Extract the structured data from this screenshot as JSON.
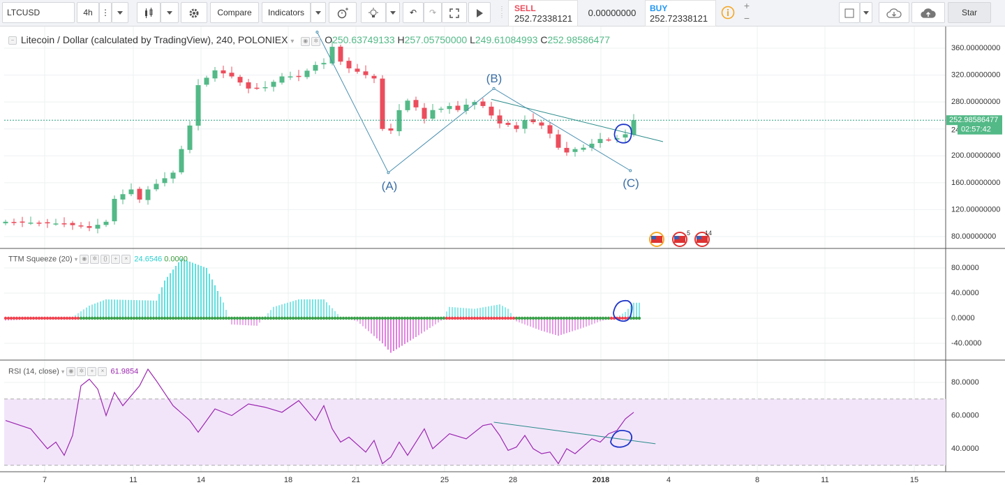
{
  "toolbar": {
    "symbol": "LTCUSD",
    "interval": "4h",
    "compare_label": "Compare",
    "indicators_label": "Indicators",
    "sell_label": "SELL",
    "sell_price": "252.72338121",
    "spread": "0.00000000",
    "buy_label": "BUY",
    "buy_price": "252.72338121",
    "star_label": "Star",
    "icons": [
      "candles-icon",
      "gear-icon",
      "alert-icon",
      "lightbulb-icon",
      "undo-icon",
      "redo-icon",
      "fullscreen-icon",
      "play-icon",
      "info-icon",
      "plus-icon",
      "minus-icon",
      "square-icon",
      "cloud-download-icon",
      "cloud-upload-icon"
    ]
  },
  "main_legend": {
    "title": "Litecoin / Dollar (calculated by TradingView), 240, POLONIEX",
    "o_label": "O",
    "o_value": "250.63749133",
    "h_label": "H",
    "h_value": "257.05750000",
    "l_label": "L",
    "l_value": "249.61084993",
    "c_label": "C",
    "c_value": "252.98586477"
  },
  "ttm_legend": {
    "name": "TTM Squeeze (20)",
    "value1": "24.6546",
    "value2": "0.0000"
  },
  "rsi_legend": {
    "name": "RSI (14, close)",
    "value": "61.9854"
  },
  "price_axis_labels": [
    "360.00000000",
    "320.00000000",
    "280.00000000",
    "240.00000000",
    "200.00000000",
    "160.00000000",
    "120.00000000",
    "80.00000000"
  ],
  "last_price_label": "252.98586477",
  "countdown_label": "02:57:42",
  "ttm_axis_labels": [
    "80.0000",
    "40.0000",
    "0.0000",
    "-40.0000"
  ],
  "rsi_axis_labels": [
    "80.0000",
    "60.0000",
    "40.0000"
  ],
  "time_axis_labels": [
    "7",
    "11",
    "14",
    "18",
    "21",
    "25",
    "28",
    "2018",
    "4",
    "8",
    "11",
    "15"
  ],
  "wave_labels": [
    "(A)",
    "(B)",
    "(C)"
  ],
  "event_badges": [
    "5",
    "14"
  ],
  "colors": {
    "up": "#53b987",
    "down": "#eb4d5c",
    "ttm_up": "#5ee0e0",
    "ttm_down": "#e07fe0",
    "rsi_line": "#9c27b0",
    "rsi_band": "#f2e5fa",
    "trend": "#4a8fb0",
    "annot": "#1f36c8"
  },
  "chart_data": [
    {
      "type": "candlestick",
      "title": "Litecoin / Dollar (calculated by TradingView), 240, POLONIEX",
      "x_labels": [
        "7",
        "11",
        "14",
        "18",
        "21",
        "25",
        "28",
        "2018",
        "4",
        "8",
        "11",
        "15"
      ],
      "ylim": [
        60,
        380
      ],
      "path": [
        [
          0,
          102
        ],
        [
          7,
          99
        ],
        [
          10,
          93
        ],
        [
          12,
          102
        ],
        [
          13,
          136
        ],
        [
          15,
          150
        ],
        [
          16,
          135
        ],
        [
          17,
          150
        ],
        [
          20,
          175
        ],
        [
          22,
          245
        ],
        [
          23,
          305
        ],
        [
          25,
          327
        ],
        [
          27,
          318
        ],
        [
          29,
          300
        ],
        [
          31,
          302
        ],
        [
          33,
          318
        ],
        [
          35,
          318
        ],
        [
          37,
          335
        ],
        [
          38,
          338
        ],
        [
          38.5,
          355
        ],
        [
          39,
          362
        ],
        [
          40,
          340
        ],
        [
          41,
          330
        ],
        [
          43,
          320
        ],
        [
          44,
          315
        ],
        [
          44.7,
          290
        ],
        [
          45,
          240
        ],
        [
          45.7,
          230
        ],
        [
          46.5,
          250
        ],
        [
          47.2,
          275
        ],
        [
          48,
          282
        ],
        [
          49,
          272
        ],
        [
          50,
          255
        ],
        [
          51,
          268
        ],
        [
          52,
          270
        ],
        [
          53,
          274
        ],
        [
          54,
          268
        ],
        [
          55,
          276
        ],
        [
          56,
          280
        ],
        [
          57,
          274
        ],
        [
          58,
          260
        ],
        [
          59,
          248
        ],
        [
          60,
          246
        ],
        [
          61,
          240
        ],
        [
          62,
          253
        ],
        [
          63,
          250
        ],
        [
          64,
          245
        ],
        [
          65,
          233
        ],
        [
          66,
          212
        ],
        [
          67,
          205
        ],
        [
          68,
          210
        ],
        [
          69,
          212
        ],
        [
          70,
          218
        ],
        [
          71,
          225
        ],
        [
          72,
          224
        ],
        [
          73,
          226
        ],
        [
          74,
          232
        ],
        [
          74.5,
          238
        ],
        [
          75,
          250
        ],
        [
          75.3,
          256
        ]
      ],
      "last_value": 252.98586477,
      "wave_points": {
        "A": 175,
        "B": 300,
        "C": 178
      }
    },
    {
      "type": "bar",
      "title": "TTM Squeeze (20)",
      "ylim": [
        -60,
        100
      ],
      "description_values": [
        [
          0,
          -4
        ],
        [
          8,
          2
        ],
        [
          10,
          20
        ],
        [
          12,
          30
        ],
        [
          18,
          28
        ],
        [
          19,
          60
        ],
        [
          21,
          95
        ],
        [
          24,
          80
        ],
        [
          26,
          25
        ],
        [
          27,
          -10
        ],
        [
          30,
          -12
        ],
        [
          32,
          18
        ],
        [
          35,
          30
        ],
        [
          38,
          30
        ],
        [
          40,
          2
        ],
        [
          42,
          -5
        ],
        [
          45,
          -40
        ],
        [
          46,
          -55
        ],
        [
          49,
          -30
        ],
        [
          52,
          -4
        ],
        [
          53,
          18
        ],
        [
          56,
          15
        ],
        [
          59,
          22
        ],
        [
          60,
          15
        ],
        [
          61,
          -5
        ],
        [
          64,
          -20
        ],
        [
          66,
          -28
        ],
        [
          69,
          -15
        ],
        [
          71,
          -5
        ],
        [
          73,
          2
        ],
        [
          74,
          10
        ],
        [
          75,
          24.6546
        ]
      ]
    },
    {
      "type": "line",
      "title": "RSI (14, close)",
      "ylim": [
        30,
        90
      ],
      "band": [
        30,
        70
      ],
      "last_value": 61.9854
    }
  ]
}
